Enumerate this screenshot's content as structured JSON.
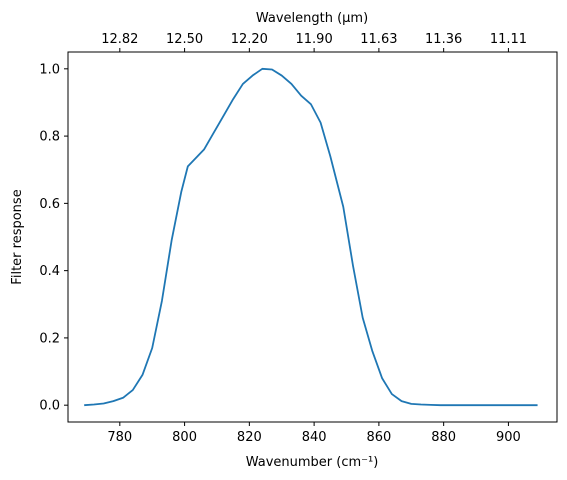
{
  "chart_data": {
    "type": "line",
    "xlabel": "Wavenumber (cm⁻¹)",
    "ylabel": "Filter response",
    "top_xlabel": "Wavelength (μm)",
    "xlim": [
      764,
      915
    ],
    "ylim": [
      -0.05,
      1.05
    ],
    "x_ticks": [
      780,
      800,
      820,
      840,
      860,
      880,
      900
    ],
    "y_ticks": [
      0.0,
      0.2,
      0.4,
      0.6,
      0.8,
      1.0
    ],
    "top_x_ticks": [
      {
        "wavenumber": 780,
        "label": "12.82"
      },
      {
        "wavenumber": 800,
        "label": "12.50"
      },
      {
        "wavenumber": 820,
        "label": "12.20"
      },
      {
        "wavenumber": 840,
        "label": "11.90"
      },
      {
        "wavenumber": 860,
        "label": "11.63"
      },
      {
        "wavenumber": 880,
        "label": "11.36"
      },
      {
        "wavenumber": 900,
        "label": "11.11"
      }
    ],
    "series": [
      {
        "color": "#1f77b4",
        "x": [
          769,
          772,
          775,
          778,
          781,
          784,
          787,
          790,
          793,
          796,
          799,
          801,
          803,
          806,
          809,
          812,
          815,
          818,
          821,
          824,
          827,
          830,
          833,
          836,
          839,
          842,
          845,
          849,
          852,
          855,
          858,
          861,
          864,
          867,
          870,
          873,
          876,
          879,
          882,
          885,
          888,
          891,
          894,
          897,
          900,
          903,
          906,
          909
        ],
        "y": [
          0.0,
          0.002,
          0.005,
          0.012,
          0.022,
          0.045,
          0.09,
          0.17,
          0.31,
          0.49,
          0.635,
          0.71,
          0.73,
          0.76,
          0.81,
          0.86,
          0.91,
          0.955,
          0.98,
          1.0,
          0.998,
          0.98,
          0.955,
          0.92,
          0.895,
          0.84,
          0.74,
          0.59,
          0.415,
          0.26,
          0.16,
          0.08,
          0.033,
          0.012,
          0.004,
          0.002,
          0.001,
          0.0,
          0.0,
          0.0,
          0.0,
          0.0,
          0.0,
          0.0,
          0.0,
          0.0,
          0.0,
          0.0
        ]
      }
    ],
    "grid": false,
    "legend": "none"
  }
}
